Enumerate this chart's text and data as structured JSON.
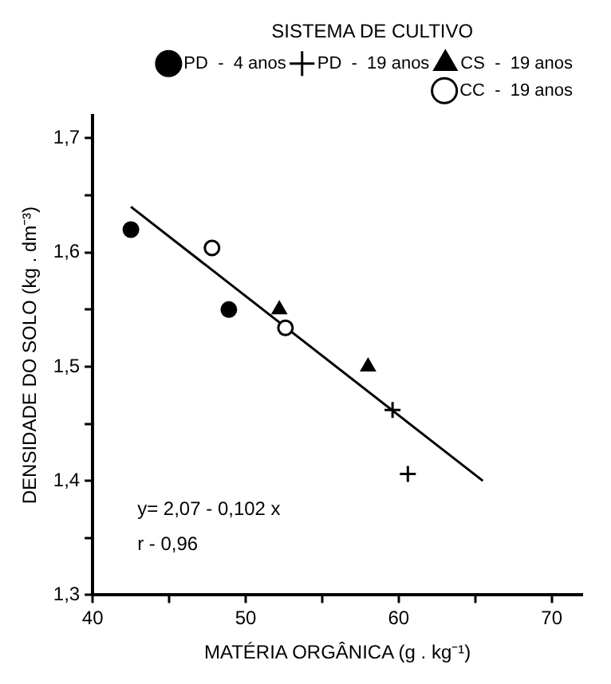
{
  "chart_data": {
    "type": "scatter",
    "xlabel": "MATÉRIA ORGÂNICA (g . kg⁻¹)",
    "ylabel": "DENSIDADE DO SOLO (kg . dm⁻³)",
    "legend_title": "SISTEMA DE CULTIVO",
    "legend": "top right",
    "grid": false,
    "xlim": [
      40,
      72
    ],
    "ylim": [
      1.3,
      1.72
    ],
    "xticks": [
      40,
      {
        "value": 45,
        "label": null
      },
      50,
      {
        "value": 55,
        "label": null
      },
      60,
      {
        "value": 65,
        "label": null
      },
      70
    ],
    "yticks": [
      {
        "value": 1.3,
        "label": "1,3"
      },
      {
        "value": 1.35,
        "label": null
      },
      {
        "value": 1.4,
        "label": "1,4"
      },
      {
        "value": 1.45,
        "label": null
      },
      {
        "value": 1.5,
        "label": "1,5"
      },
      {
        "value": 1.55,
        "label": null
      },
      {
        "value": 1.6,
        "label": "1,6"
      },
      {
        "value": 1.65,
        "label": null
      },
      {
        "value": 1.7,
        "label": "1,7"
      }
    ],
    "series": [
      {
        "name": "PD  -  4 anos",
        "color": "#000000",
        "marker": "circle",
        "x": [
          42.5,
          48.9
        ],
        "values": [
          1.62,
          1.55
        ]
      },
      {
        "name": "PD  -  19 anos",
        "color": "#000000",
        "marker": "cross",
        "x": [
          59.6,
          60.6
        ],
        "values": [
          1.462,
          1.406
        ]
      },
      {
        "name": "CS  -  19 anos",
        "color": "#000000",
        "marker": "triangle",
        "x": [
          52.2,
          58.0
        ],
        "values": [
          1.55,
          1.5
        ]
      },
      {
        "name": "CC  -  19 anos",
        "color": "#000000",
        "marker": "open_circle",
        "x": [
          47.8,
          52.6
        ],
        "values": [
          1.604,
          1.534
        ]
      },
      {
        "type": "line",
        "color": "#000000",
        "marker": "none",
        "line_style": "solid",
        "x": [
          42.5,
          65.5
        ],
        "values": [
          1.64,
          1.4
        ]
      }
    ],
    "annotations": [
      "y= 2,07 - 0,102 x",
      "r - 0,96"
    ]
  }
}
